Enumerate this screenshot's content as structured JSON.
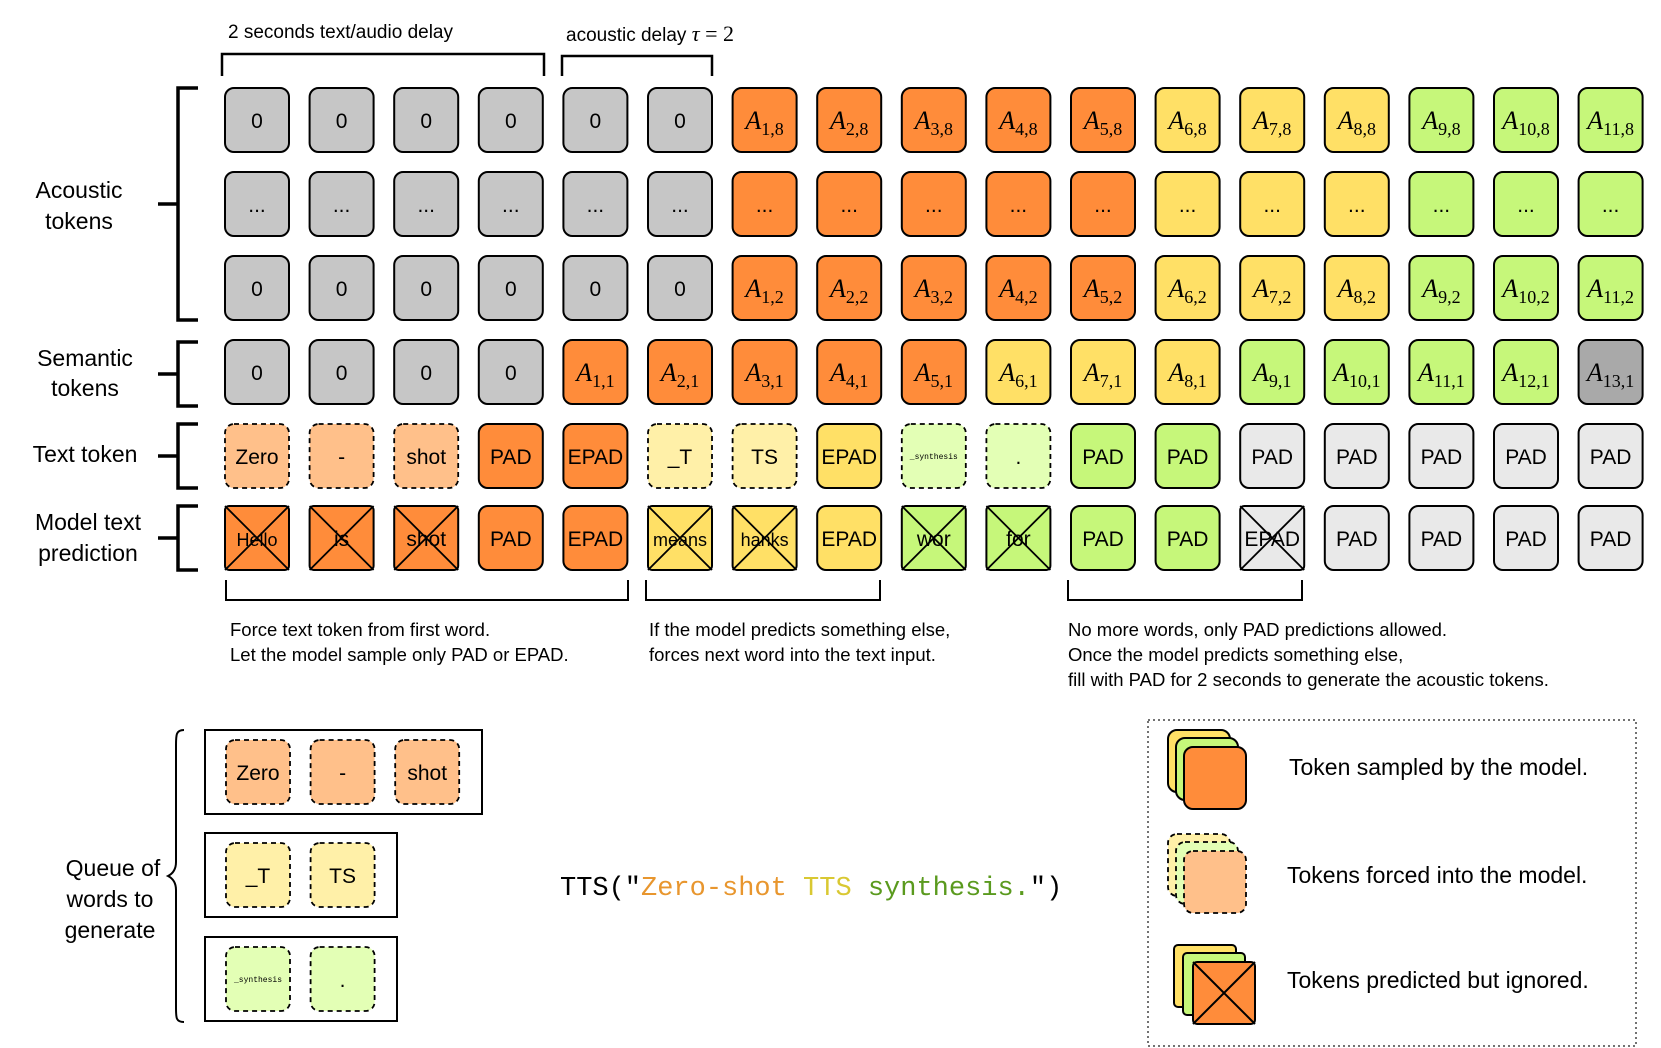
{
  "top_labels": {
    "text_audio_delay": "2 seconds text/audio delay",
    "acoustic_delay_prefix": "acoustic delay ",
    "acoustic_delay_symbol": "τ",
    "acoustic_delay_value": " = 2"
  },
  "row_labels": {
    "acoustic": [
      "Acoustic",
      "tokens"
    ],
    "semantic": [
      "Semantic",
      "tokens"
    ],
    "text": [
      "Text token"
    ],
    "model": [
      "Model text",
      "prediction"
    ]
  },
  "colors": {
    "gray": "#c6c6c6",
    "dark_gray": "#a9a9a9",
    "orange": "#ff8c3a",
    "light_orange": "#ffc08a",
    "yellow": "#ffe066",
    "light_yellow": "#fff0a8",
    "green": "#c6f77a",
    "light_green": "#e3ffb5",
    "pad_gray": "#e9e9e9"
  },
  "acoustic_rows": [
    {
      "row": "top",
      "cells": [
        {
          "t": "0",
          "c": "gray"
        },
        {
          "t": "0",
          "c": "gray"
        },
        {
          "t": "0",
          "c": "gray"
        },
        {
          "t": "0",
          "c": "gray"
        },
        {
          "t": "0",
          "c": "gray"
        },
        {
          "t": "0",
          "c": "gray"
        },
        {
          "a": "1,8",
          "c": "orange"
        },
        {
          "a": "2,8",
          "c": "orange"
        },
        {
          "a": "3,8",
          "c": "orange"
        },
        {
          "a": "4,8",
          "c": "orange"
        },
        {
          "a": "5,8",
          "c": "orange"
        },
        {
          "a": "6,8",
          "c": "yellow"
        },
        {
          "a": "7,8",
          "c": "yellow"
        },
        {
          "a": "8,8",
          "c": "yellow"
        },
        {
          "a": "9,8",
          "c": "green"
        },
        {
          "a": "10,8",
          "c": "green"
        },
        {
          "a": "11,8",
          "c": "green"
        }
      ]
    },
    {
      "row": "middle",
      "cells": [
        {
          "t": "...",
          "c": "gray"
        },
        {
          "t": "...",
          "c": "gray"
        },
        {
          "t": "...",
          "c": "gray"
        },
        {
          "t": "...",
          "c": "gray"
        },
        {
          "t": "...",
          "c": "gray"
        },
        {
          "t": "...",
          "c": "gray"
        },
        {
          "t": "...",
          "c": "orange"
        },
        {
          "t": "...",
          "c": "orange"
        },
        {
          "t": "...",
          "c": "orange"
        },
        {
          "t": "...",
          "c": "orange"
        },
        {
          "t": "...",
          "c": "orange"
        },
        {
          "t": "...",
          "c": "yellow"
        },
        {
          "t": "...",
          "c": "yellow"
        },
        {
          "t": "...",
          "c": "yellow"
        },
        {
          "t": "...",
          "c": "green"
        },
        {
          "t": "...",
          "c": "green"
        },
        {
          "t": "...",
          "c": "green"
        }
      ]
    },
    {
      "row": "bottom",
      "cells": [
        {
          "t": "0",
          "c": "gray"
        },
        {
          "t": "0",
          "c": "gray"
        },
        {
          "t": "0",
          "c": "gray"
        },
        {
          "t": "0",
          "c": "gray"
        },
        {
          "t": "0",
          "c": "gray"
        },
        {
          "t": "0",
          "c": "gray"
        },
        {
          "a": "1,2",
          "c": "orange"
        },
        {
          "a": "2,2",
          "c": "orange"
        },
        {
          "a": "3,2",
          "c": "orange"
        },
        {
          "a": "4,2",
          "c": "orange"
        },
        {
          "a": "5,2",
          "c": "orange"
        },
        {
          "a": "6,2",
          "c": "yellow"
        },
        {
          "a": "7,2",
          "c": "yellow"
        },
        {
          "a": "8,2",
          "c": "yellow"
        },
        {
          "a": "9,2",
          "c": "green"
        },
        {
          "a": "10,2",
          "c": "green"
        },
        {
          "a": "11,2",
          "c": "green"
        }
      ]
    }
  ],
  "semantic_row": [
    {
      "t": "0",
      "c": "gray"
    },
    {
      "t": "0",
      "c": "gray"
    },
    {
      "t": "0",
      "c": "gray"
    },
    {
      "t": "0",
      "c": "gray"
    },
    {
      "a": "1,1",
      "c": "orange"
    },
    {
      "a": "2,1",
      "c": "orange"
    },
    {
      "a": "3,1",
      "c": "orange"
    },
    {
      "a": "4,1",
      "c": "orange"
    },
    {
      "a": "5,1",
      "c": "orange"
    },
    {
      "a": "6,1",
      "c": "yellow"
    },
    {
      "a": "7,1",
      "c": "yellow"
    },
    {
      "a": "8,1",
      "c": "yellow"
    },
    {
      "a": "9,1",
      "c": "green"
    },
    {
      "a": "10,1",
      "c": "green"
    },
    {
      "a": "11,1",
      "c": "green"
    },
    {
      "a": "12,1",
      "c": "green"
    },
    {
      "a": "13,1",
      "c": "dark_gray"
    }
  ],
  "text_row": [
    {
      "t": "Zero",
      "c": "light_orange",
      "dash": true
    },
    {
      "t": "-",
      "c": "light_orange",
      "dash": true
    },
    {
      "t": "shot",
      "c": "light_orange",
      "dash": true
    },
    {
      "t": "PAD",
      "c": "orange"
    },
    {
      "t": "EPAD",
      "c": "orange"
    },
    {
      "t": "_T",
      "c": "light_yellow",
      "dash": true
    },
    {
      "t": "TS",
      "c": "light_yellow",
      "dash": true
    },
    {
      "t": "EPAD",
      "c": "yellow"
    },
    {
      "t": "_synthesis",
      "c": "light_green",
      "dash": true,
      "small": true
    },
    {
      "t": ".",
      "c": "light_green",
      "dash": true
    },
    {
      "t": "PAD",
      "c": "green"
    },
    {
      "t": "PAD",
      "c": "green"
    },
    {
      "t": "PAD",
      "c": "pad_gray"
    },
    {
      "t": "PAD",
      "c": "pad_gray"
    },
    {
      "t": "PAD",
      "c": "pad_gray"
    },
    {
      "t": "PAD",
      "c": "pad_gray"
    },
    {
      "t": "PAD",
      "c": "pad_gray"
    }
  ],
  "model_row": [
    {
      "t": "Hello",
      "c": "orange",
      "x": true
    },
    {
      "t": "is",
      "c": "orange",
      "x": true
    },
    {
      "t": "shot",
      "c": "orange",
      "x": true
    },
    {
      "t": "PAD",
      "c": "orange"
    },
    {
      "t": "EPAD",
      "c": "orange"
    },
    {
      "t": "means",
      "c": "yellow",
      "x": true
    },
    {
      "t": "hanks",
      "c": "yellow",
      "x": true
    },
    {
      "t": "EPAD",
      "c": "yellow"
    },
    {
      "t": "wor",
      "c": "green",
      "x": true
    },
    {
      "t": "for",
      "c": "green",
      "x": true
    },
    {
      "t": "PAD",
      "c": "green"
    },
    {
      "t": "PAD",
      "c": "green"
    },
    {
      "t": "EPAD",
      "c": "pad_gray",
      "x": true
    },
    {
      "t": "PAD",
      "c": "pad_gray"
    },
    {
      "t": "PAD",
      "c": "pad_gray"
    },
    {
      "t": "PAD",
      "c": "pad_gray"
    },
    {
      "t": "PAD",
      "c": "pad_gray"
    }
  ],
  "annotations": [
    [
      "Force text token from first word.",
      "Let the model sample only PAD or EPAD."
    ],
    [
      "If the model predicts something else,",
      "forces next word into the text input."
    ],
    [
      "No more words, only PAD predictions allowed.",
      "Once the model predicts something else,",
      "fill with PAD for 2 seconds to generate the acoustic tokens."
    ]
  ],
  "queue": {
    "label": [
      "Queue of",
      "words to",
      "generate"
    ],
    "boxes": [
      [
        {
          "t": "Zero",
          "c": "light_orange"
        },
        {
          "t": "-",
          "c": "light_orange"
        },
        {
          "t": "shot",
          "c": "light_orange"
        }
      ],
      [
        {
          "t": "_T",
          "c": "light_yellow"
        },
        {
          "t": "TS",
          "c": "light_yellow"
        }
      ],
      [
        {
          "t": "_synthesis",
          "c": "light_green",
          "small": true
        },
        {
          "t": ".",
          "c": "light_green"
        }
      ]
    ]
  },
  "tts_call": {
    "prefix": "TTS(\"",
    "parts": [
      {
        "t": "Zero-shot ",
        "color": "#e8962e"
      },
      {
        "t": "TTS ",
        "color": "#d9c832"
      },
      {
        "t": "synthesis.",
        "color": "#5a9a1e"
      }
    ],
    "suffix": "\")"
  },
  "legend": {
    "items": [
      "Token sampled by the model.",
      "Tokens forced into the model.",
      "Tokens predicted but ignored."
    ]
  }
}
